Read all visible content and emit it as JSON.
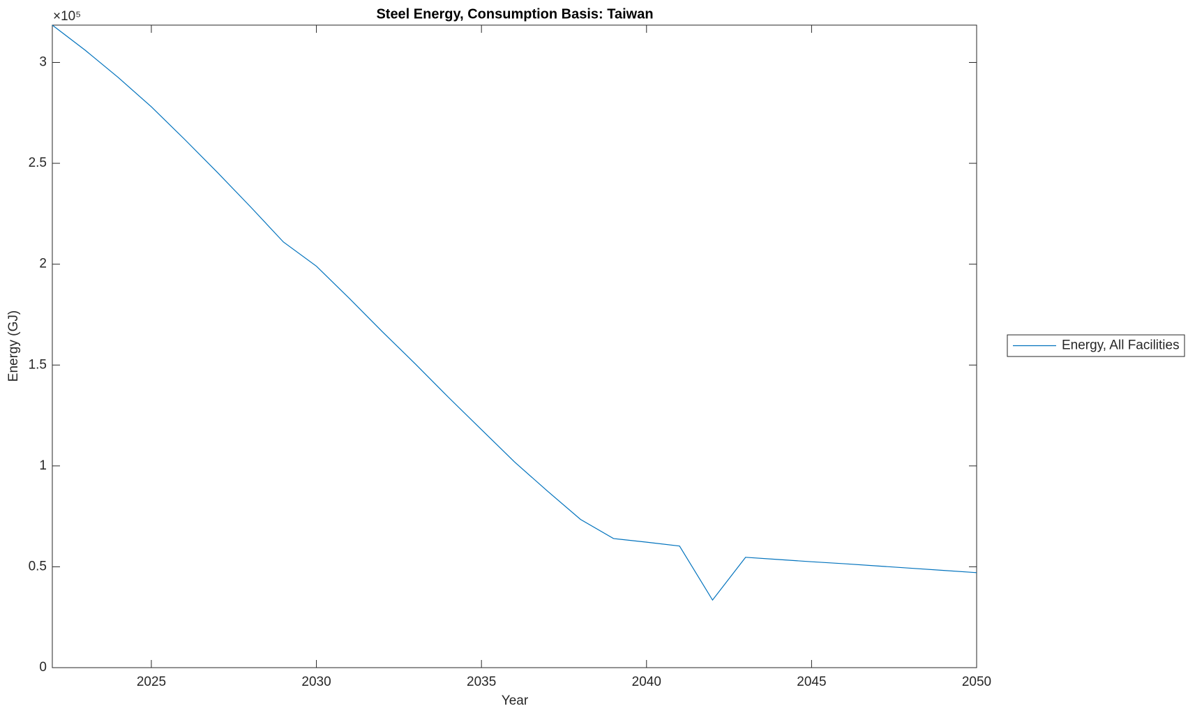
{
  "chart_data": {
    "type": "line",
    "title": "Steel Energy, Consumption Basis: Taiwan",
    "x_label": "Year",
    "y_label": "Energy (GJ)",
    "y_multiplier": "×10⁵",
    "x": [
      2022,
      2023,
      2024,
      2025,
      2026,
      2027,
      2028,
      2029,
      2030,
      2031,
      2032,
      2033,
      2034,
      2035,
      2036,
      2037,
      2038,
      2039,
      2040,
      2041,
      2042,
      2043,
      2044,
      2045,
      2046,
      2047,
      2048,
      2049,
      2050
    ],
    "series": [
      {
        "name": "Energy, All Facilities",
        "color": "#0072bd",
        "values": [
          318500,
          306000,
          292500,
          278000,
          262000,
          245500,
          228500,
          211000,
          199000,
          183000,
          166500,
          150500,
          134000,
          118000,
          102000,
          87500,
          73500,
          64000,
          62200,
          60300,
          33500,
          54700,
          53600,
          52500,
          51500,
          50400,
          49300,
          48200,
          47100
        ]
      }
    ],
    "xlim": [
      2022,
      2050
    ],
    "xticks": [
      2025,
      2030,
      2035,
      2040,
      2045,
      2050
    ],
    "ylim": [
      0,
      318500
    ],
    "yticks": [
      0,
      {
        "value": 50000,
        "label": "0.5"
      },
      {
        "value": 100000,
        "label": "1"
      },
      {
        "value": 150000,
        "label": "1.5"
      },
      {
        "value": 200000,
        "label": "2"
      },
      {
        "value": 250000,
        "label": "2.5"
      },
      {
        "value": 300000,
        "label": "3"
      }
    ],
    "legend": "outside-right"
  }
}
